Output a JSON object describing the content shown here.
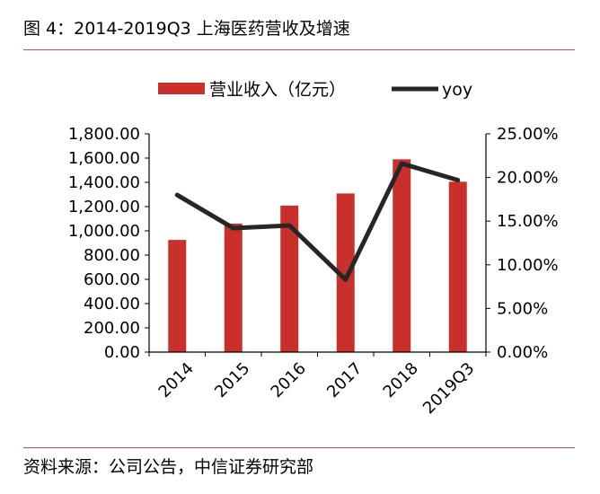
{
  "figure": {
    "title": "图 4：2014-2019Q3 上海医药营收及增速",
    "source": "资料来源：公司公告，中信证券研究部"
  },
  "colors": {
    "bar": "#c9302c",
    "line": "#262626",
    "rule": "#c0504d"
  },
  "chart_data": {
    "type": "bar",
    "categories": [
      "2014",
      "2015",
      "2016",
      "2017",
      "2018",
      "2019Q3"
    ],
    "series": [
      {
        "name": "营业收入（亿元）",
        "type": "bar",
        "axis": "left",
        "values": [
          925,
          1060,
          1208,
          1308,
          1590,
          1405
        ]
      },
      {
        "name": "yoy",
        "type": "line",
        "axis": "right",
        "values": [
          18.0,
          14.2,
          14.5,
          8.3,
          21.6,
          19.7
        ]
      }
    ],
    "y_left": {
      "min": 0,
      "max": 1800,
      "step": 200,
      "tick_labels": [
        "0.00",
        "200.00",
        "400.00",
        "600.00",
        "800.00",
        "1,000.00",
        "1,200.00",
        "1,400.00",
        "1,600.00",
        "1,800.00"
      ]
    },
    "y_right": {
      "min": 0,
      "max": 25,
      "step": 5,
      "tick_labels": [
        "0.00%",
        "5.00%",
        "10.00%",
        "15.00%",
        "20.00%",
        "25.00%"
      ]
    },
    "legend_position": "top-center",
    "grid": false
  }
}
